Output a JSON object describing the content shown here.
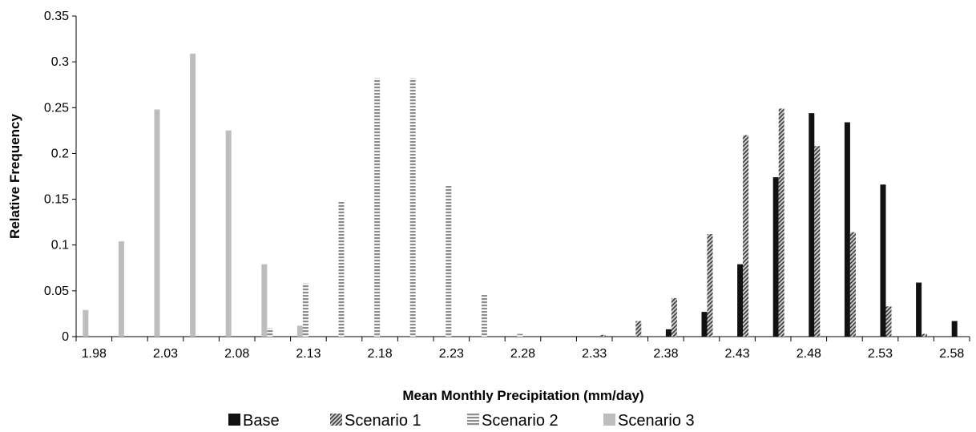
{
  "chart_data": {
    "type": "bar",
    "xlabel": "Mean Monthly Precipitation (mm/day)",
    "ylabel": "Relative Frequency",
    "ylim": [
      0,
      0.35
    ],
    "y_ticks": [
      "0",
      "0.05",
      "0.1",
      "0.15",
      "0.2",
      "0.25",
      "0.3",
      "0.35"
    ],
    "categories": [
      "1.98",
      "2.005",
      "2.03",
      "2.055",
      "2.08",
      "2.105",
      "2.13",
      "2.155",
      "2.18",
      "2.205",
      "2.23",
      "2.255",
      "2.28",
      "2.305",
      "2.33",
      "2.355",
      "2.38",
      "2.405",
      "2.43",
      "2.455",
      "2.48",
      "2.505",
      "2.53",
      "2.555",
      "2.58"
    ],
    "x_tick_labels": [
      "1.98",
      "",
      "2.03",
      "",
      "2.08",
      "",
      "2.13",
      "",
      "2.18",
      "",
      "2.23",
      "",
      "2.28",
      "",
      "2.33",
      "",
      "2.38",
      "",
      "2.43",
      "",
      "2.48",
      "",
      "2.53",
      "",
      "2.58"
    ],
    "legend_position": "bottom",
    "grid": false,
    "series": [
      {
        "name": "Base",
        "pattern": "solid-black",
        "color": "#111111",
        "values": [
          0,
          0,
          0,
          0,
          0,
          0,
          0,
          0,
          0,
          0,
          0,
          0,
          0,
          0,
          0,
          0,
          0.008,
          0.027,
          0.079,
          0.174,
          0.244,
          0.234,
          0.166,
          0.059,
          0.017
        ]
      },
      {
        "name": "Scenario 1",
        "pattern": "diagonal-hatch",
        "color": "#555555",
        "values": [
          0,
          0,
          0,
          0,
          0,
          0,
          0,
          0,
          0,
          0,
          0,
          0,
          0,
          0,
          0.002,
          0.017,
          0.042,
          0.112,
          0.22,
          0.249,
          0.208,
          0.114,
          0.033,
          0.003,
          0
        ]
      },
      {
        "name": "Scenario 2",
        "pattern": "horizontal-dash",
        "color": "#8c8c8c",
        "values": [
          0,
          0,
          0,
          0,
          0,
          0.009,
          0.058,
          0.148,
          0.282,
          0.282,
          0.165,
          0.046,
          0.003,
          0,
          0,
          0,
          0,
          0,
          0,
          0,
          0,
          0,
          0,
          0,
          0
        ]
      },
      {
        "name": "Scenario 3",
        "pattern": "solid-light-gray",
        "color": "#bdbdbd",
        "values": [
          0.029,
          0.104,
          0.248,
          0.309,
          0.225,
          0.079,
          0.012,
          0,
          0,
          0,
          0,
          0,
          0,
          0,
          0,
          0,
          0,
          0,
          0,
          0,
          0,
          0,
          0,
          0,
          0
        ]
      }
    ]
  }
}
